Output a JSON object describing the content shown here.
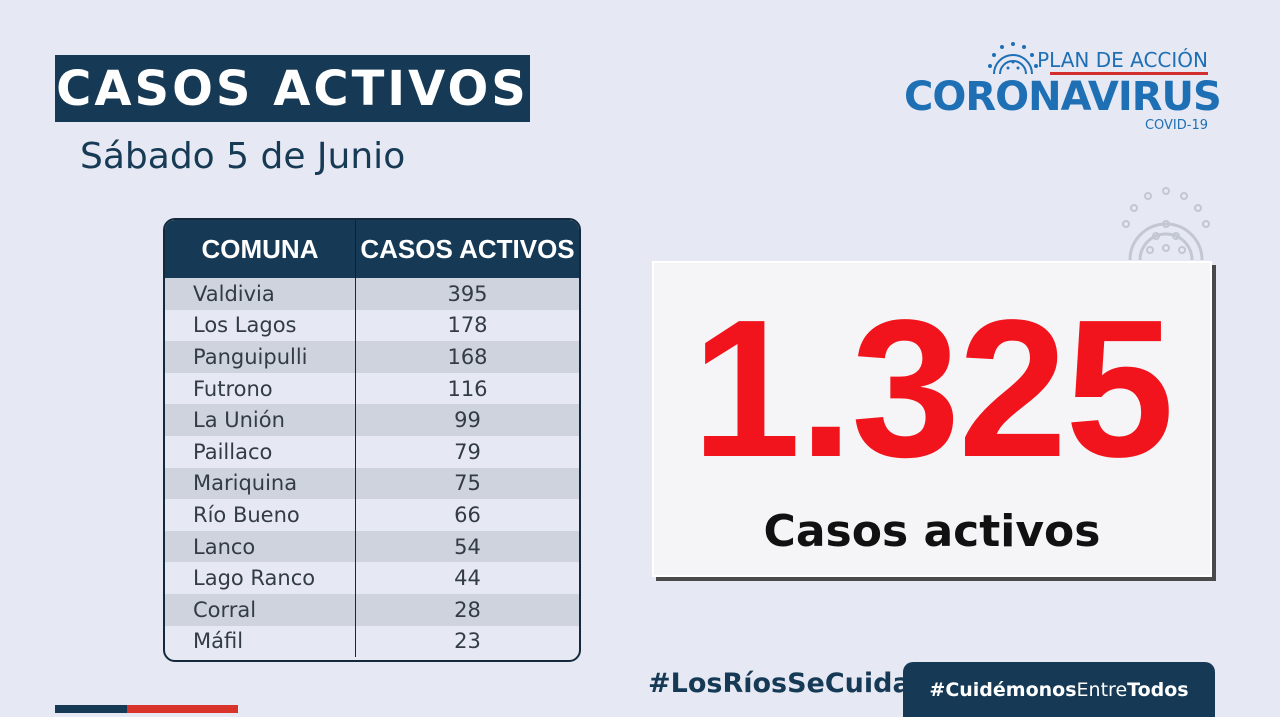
{
  "header": {
    "title": "CASOS ACTIVOS",
    "date": "Sábado 5 de Junio"
  },
  "logo": {
    "plan": "PLAN DE ACCIÓN",
    "name": "CORONAVIRUS",
    "sub": "COVID-19"
  },
  "table": {
    "headers": [
      "COMUNA",
      "CASOS ACTIVOS"
    ],
    "rows": [
      {
        "comuna": "Valdivia",
        "casos": "395"
      },
      {
        "comuna": "Los Lagos",
        "casos": "178"
      },
      {
        "comuna": "Panguipulli",
        "casos": "168"
      },
      {
        "comuna": "Futrono",
        "casos": "116"
      },
      {
        "comuna": "La Unión",
        "casos": "99"
      },
      {
        "comuna": "Paillaco",
        "casos": "79"
      },
      {
        "comuna": "Mariquina",
        "casos": "75"
      },
      {
        "comuna": "Río Bueno",
        "casos": "66"
      },
      {
        "comuna": "Lanco",
        "casos": "54"
      },
      {
        "comuna": "Lago Ranco",
        "casos": "44"
      },
      {
        "comuna": "Corral",
        "casos": "28"
      },
      {
        "comuna": "Máfil",
        "casos": "23"
      }
    ]
  },
  "summary": {
    "total": "1.325",
    "label": "Casos activos"
  },
  "footer": {
    "hashtag_los_rios": "#LosRíosSeCuida",
    "hashtag_cuidemonos_a": "#Cuidémonos",
    "hashtag_cuidemonos_b": "Entre",
    "hashtag_cuidemonos_c": "Todos"
  },
  "colors": {
    "navy": "#163a55",
    "red": "#f2141c",
    "brand_blue": "#1f6fb5",
    "background": "#e6e9f3"
  }
}
